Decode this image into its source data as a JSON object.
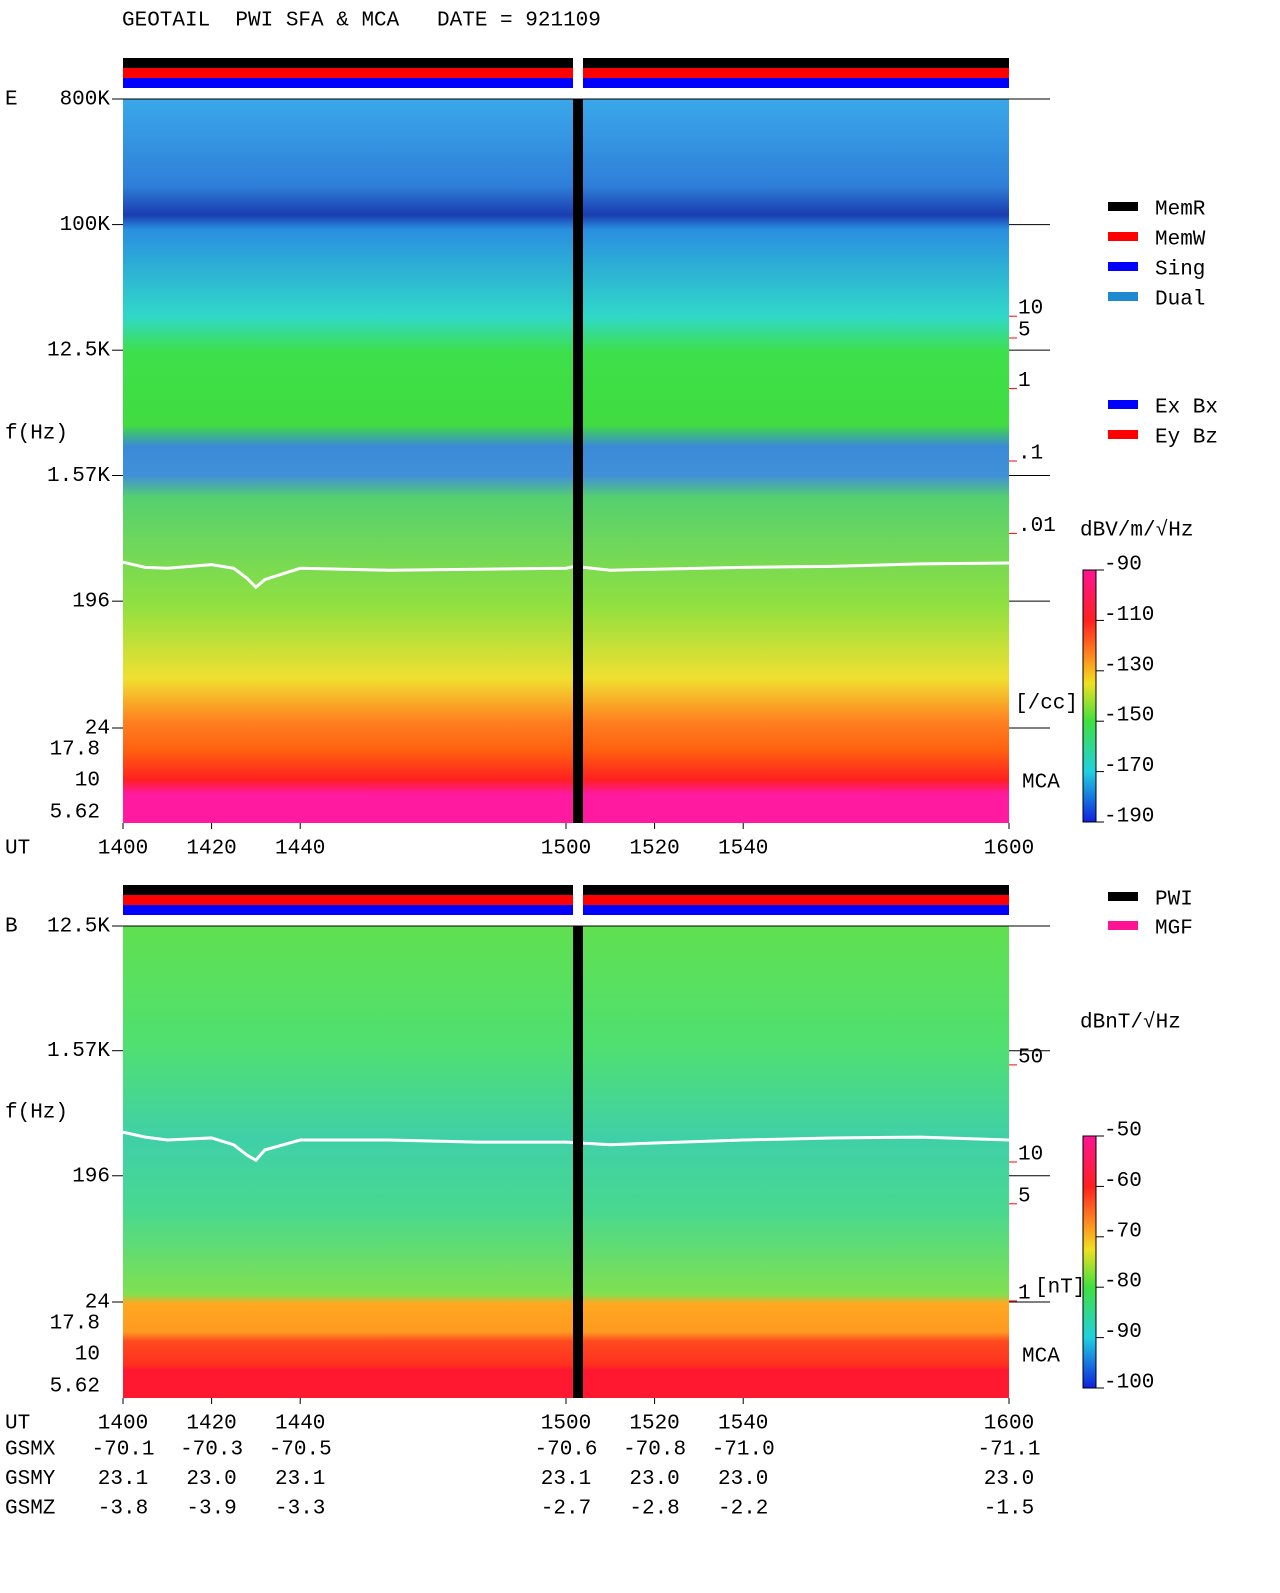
{
  "title": "GEOTAIL  PWI SFA & MCA   DATE = 921109",
  "chart_data": [
    {
      "type": "spectrogram",
      "panel_label": "E",
      "ylabel": "f(Hz)",
      "xlabel": "UT",
      "xlim": [
        1400,
        1600
      ],
      "xticks": [
        1400,
        1420,
        1440,
        1500,
        1520,
        1540,
        1600
      ],
      "ylog": true,
      "ylim": [
        24,
        800000
      ],
      "yticks": [
        {
          "value": 800000,
          "label": "800K"
        },
        {
          "value": 100000,
          "label": "100K"
        },
        {
          "value": 12500,
          "label": "12.5K"
        },
        {
          "value": 1570,
          "label": "1.57K"
        },
        196,
        24
      ],
      "mca_channels": [
        17.8,
        10,
        5.62
      ],
      "mca_label": "MCA",
      "y2log": true,
      "y2lim": [
        1e-06,
        10000
      ],
      "y2color": "#ff0000",
      "y2label": "[/cc]",
      "y2ticks": [
        10,
        5,
        1,
        {
          "value": 0.1,
          "label": ".1"
        },
        {
          "value": 0.01,
          "label": ".01"
        }
      ],
      "trace": {
        "color": "#ffffff",
        "axis": "y2",
        "x": [
          1400,
          1405,
          1410,
          1420,
          1425,
          1428,
          1430,
          1432,
          1440,
          1460,
          1480,
          1500,
          1502,
          1510,
          1520,
          1540,
          1560,
          1580,
          1600
        ],
        "values": [
          0.004,
          0.0034,
          0.0033,
          0.0037,
          0.0033,
          0.0024,
          0.0018,
          0.0023,
          0.0033,
          0.0031,
          0.0032,
          0.0033,
          0.0035,
          0.0031,
          0.0032,
          0.0034,
          0.0035,
          0.0038,
          0.0039
        ]
      },
      "colorbar": {
        "label": "dBV/m/√Hz",
        "clim": [
          -190,
          -90
        ],
        "ticks": [
          -90,
          -110,
          -130,
          -150,
          -170,
          -190
        ]
      },
      "legend": [
        {
          "name": "MemR",
          "color": "#000000"
        },
        {
          "name": "MemW",
          "color": "#ff0000"
        },
        {
          "name": "Sing",
          "color": "#0000ff"
        },
        {
          "name": "Dual",
          "color": "#1e88d0"
        }
      ],
      "legend2": [
        {
          "name": "Ex Bx",
          "color": "#0000ff"
        },
        {
          "name": "Ey Bz",
          "color": "#ff0000"
        }
      ]
    },
    {
      "type": "spectrogram",
      "panel_label": "B",
      "ylabel": "f(Hz)",
      "xlabel": "UT",
      "xlim": [
        1400,
        1600
      ],
      "xticks": [
        1400,
        1420,
        1440,
        1500,
        1520,
        1540,
        1600
      ],
      "ylog": true,
      "ylim": [
        24,
        12500
      ],
      "yticks": [
        {
          "value": 12500,
          "label": "12.5K"
        },
        {
          "value": 1570,
          "label": "1.57K"
        },
        196,
        24
      ],
      "mca_channels": [
        17.8,
        10,
        5.62
      ],
      "mca_label": "MCA",
      "y2log": true,
      "y2lim": [
        0.2,
        500
      ],
      "y2color": "#ff0000",
      "y2label": "[nT]",
      "y2ticks": [
        50,
        10,
        5,
        1
      ],
      "trace": {
        "color": "#ffffff",
        "axis": "y2",
        "x": [
          1400,
          1405,
          1410,
          1420,
          1425,
          1428,
          1430,
          1432,
          1440,
          1460,
          1480,
          1500,
          1510,
          1520,
          1540,
          1560,
          1580,
          1600
        ],
        "values": [
          16.4,
          15.1,
          14.4,
          14.9,
          13.3,
          11.2,
          10.3,
          12.2,
          14.4,
          14.4,
          13.9,
          13.9,
          13.3,
          13.7,
          14.4,
          14.9,
          15.1,
          14.4
        ]
      },
      "colorbar": {
        "label": "dBnT/√Hz",
        "clim": [
          -100,
          -50
        ],
        "ticks": [
          -50,
          -60,
          -70,
          -80,
          -90,
          -100
        ]
      },
      "legend": [
        {
          "name": "PWI",
          "color": "#000000"
        },
        {
          "name": "MGF",
          "color": "#ff1493"
        }
      ]
    }
  ],
  "position_table": {
    "rows": [
      {
        "label": "GSMX",
        "values": [
          "-70.1",
          "-70.3",
          "-70.5",
          "-70.6",
          "-70.8",
          "-71.0",
          "-71.1"
        ]
      },
      {
        "label": "GSMY",
        "values": [
          "23.1",
          "23.0",
          "23.1",
          "23.1",
          "23.0",
          "23.0",
          "23.0"
        ]
      },
      {
        "label": "GSMZ",
        "values": [
          "-3.8",
          "-3.9",
          "-3.3",
          "-2.7",
          "-2.8",
          "-2.2",
          "-1.5"
        ]
      }
    ]
  }
}
